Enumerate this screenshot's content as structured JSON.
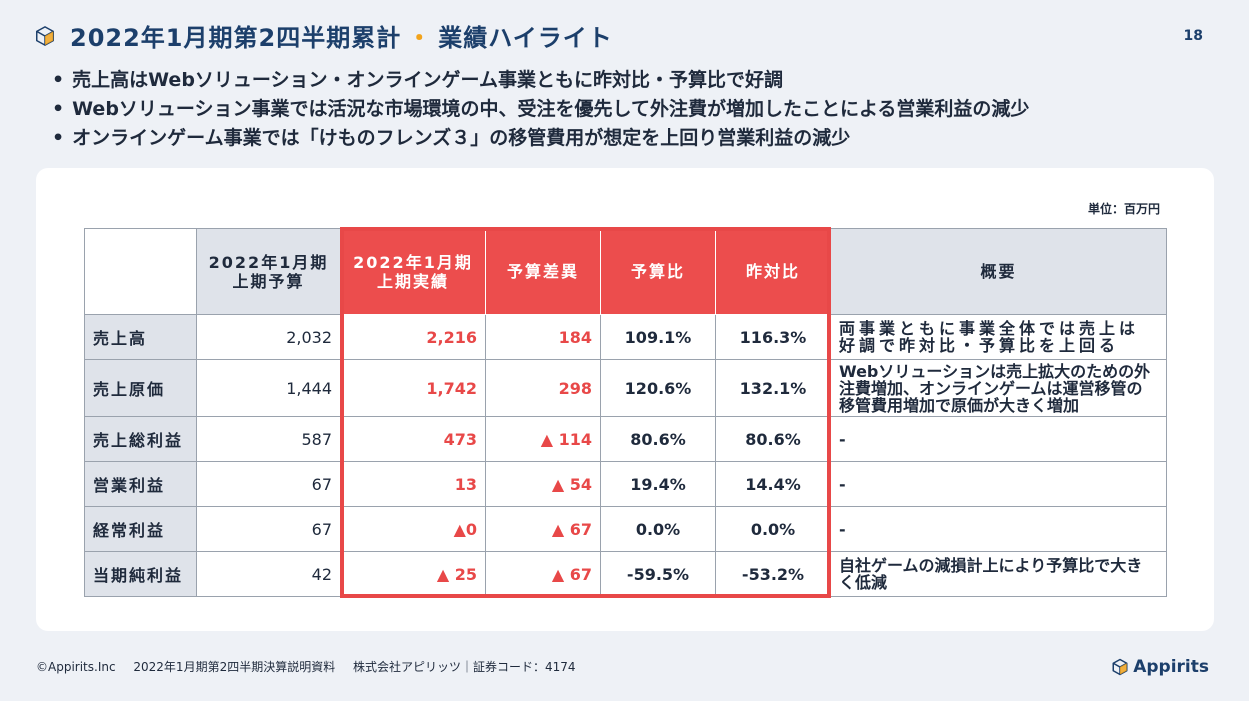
{
  "header": {
    "icon": "cube-icon",
    "title_main": "2022年1月期第2四半期累計",
    "title_sep": "・",
    "title_sub": "業績ハイライト",
    "page_number": "18",
    "accent_color": "#f2a31b",
    "title_color": "#1c3f6b"
  },
  "bullets": [
    "売上高はWebソリューション・オンラインゲーム事業ともに昨対比・予算比で好調",
    "Webソリューション事業では活況な市場環境の中、受注を優先して外注費が増加したことによる営業利益の減少",
    "オンラインゲーム事業では「けものフレンズ３」の移管費用が想定を上回り営業利益の減少"
  ],
  "table": {
    "unit": "単位：百万円",
    "highlight_color": "#e84848",
    "headers": {
      "budget_l1": "2022年1月期",
      "budget_l2": "上期予算",
      "actual_l1": "2022年1月期",
      "actual_l2": "上期実績",
      "diff": "予算差異",
      "budget_ratio": "予算比",
      "yoy": "昨対比",
      "summary": "概要"
    },
    "rows": [
      {
        "label": "売上高",
        "budget": "2,032",
        "actual": "2,216",
        "diff": "184",
        "budget_ratio": "109.1%",
        "yoy": "116.3%",
        "note": "両事業ともに事業全体では売上は好調で昨対比・予算比を上回る"
      },
      {
        "label": "売上原価",
        "budget": "1,444",
        "actual": "1,742",
        "diff": "298",
        "budget_ratio": "120.6%",
        "yoy": "132.1%",
        "note": "Webソリューションは売上拡大のための外注費増加、オンラインゲームは運営移管の移管費用増加で原価が大きく増加"
      },
      {
        "label": "売上総利益",
        "budget": "587",
        "actual": "473",
        "diff": "▲ 114",
        "budget_ratio": "80.6%",
        "yoy": "80.6%",
        "note": "-"
      },
      {
        "label": "営業利益",
        "budget": "67",
        "actual": "13",
        "diff": "▲ 54",
        "budget_ratio": "19.4%",
        "yoy": "14.4%",
        "note": "-"
      },
      {
        "label": "経常利益",
        "budget": "67",
        "actual": "▲0",
        "diff": "▲ 67",
        "budget_ratio": "0.0%",
        "yoy": "0.0%",
        "note": "-"
      },
      {
        "label": "当期純利益",
        "budget": "42",
        "actual": "▲ 25",
        "diff": "▲ 67",
        "budget_ratio": "-59.5%",
        "yoy": "-53.2%",
        "note": "自社ゲームの減損計上により予算比で大きく低減"
      }
    ]
  },
  "footer": {
    "copyright": "©Appirits.Inc",
    "document": "2022年1月期第2四半期決算説明資料",
    "company": "株式会社アピリッツ｜証券コード：4174",
    "brand": "Appirits"
  }
}
